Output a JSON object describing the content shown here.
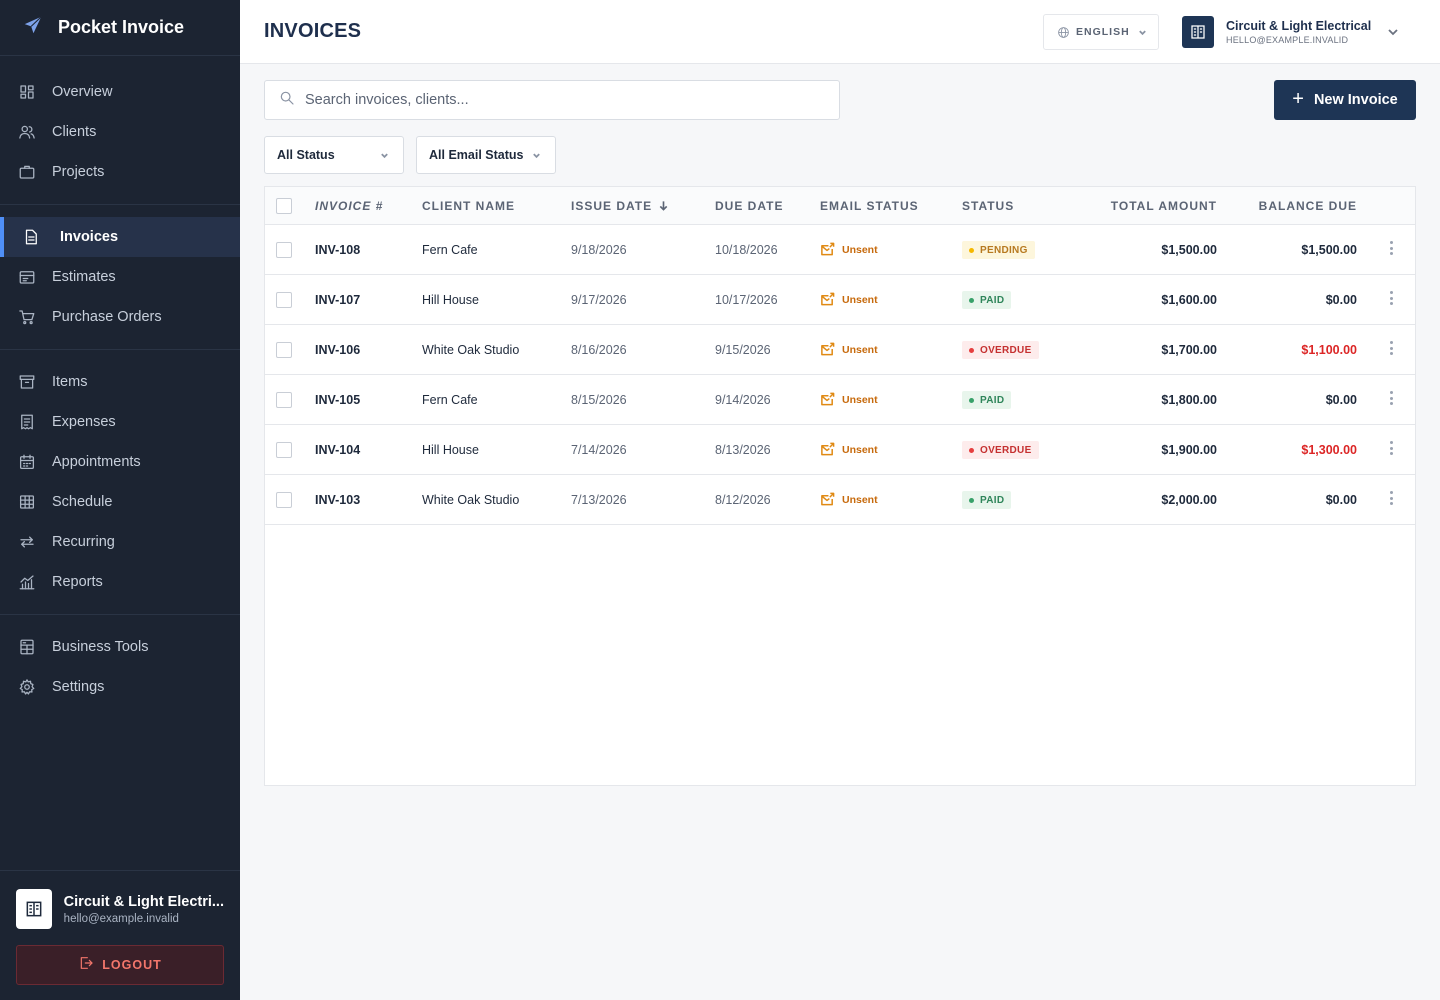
{
  "app": {
    "name": "Pocket Invoice"
  },
  "sidebar": {
    "groups": [
      [
        {
          "label": "Overview",
          "icon": "grid-icon"
        },
        {
          "label": "Clients",
          "icon": "users-icon"
        },
        {
          "label": "Projects",
          "icon": "briefcase-icon"
        }
      ],
      [
        {
          "label": "Invoices",
          "icon": "document-icon",
          "active": true
        },
        {
          "label": "Estimates",
          "icon": "estimate-icon"
        },
        {
          "label": "Purchase Orders",
          "icon": "cart-icon"
        }
      ],
      [
        {
          "label": "Items",
          "icon": "archive-icon"
        },
        {
          "label": "Expenses",
          "icon": "receipt-icon"
        },
        {
          "label": "Appointments",
          "icon": "calendar-icon"
        },
        {
          "label": "Schedule",
          "icon": "table-icon"
        },
        {
          "label": "Recurring",
          "icon": "repeat-icon"
        },
        {
          "label": "Reports",
          "icon": "chart-icon"
        }
      ],
      [
        {
          "label": "Business Tools",
          "icon": "calculator-icon"
        },
        {
          "label": "Settings",
          "icon": "gear-icon"
        }
      ]
    ],
    "footer": {
      "name": "Circuit & Light Electri...",
      "email": "hello@example.invalid",
      "logout_label": "LOGOUT"
    }
  },
  "header": {
    "title": "INVOICES",
    "language": "ENGLISH",
    "account_name": "Circuit & Light Electrical",
    "account_email": "HELLO@EXAMPLE.INVALID"
  },
  "toolbar": {
    "search_placeholder": "Search invoices, clients...",
    "new_invoice_label": "New Invoice",
    "status_filter": "All Status",
    "email_status_filter": "All Email Status"
  },
  "table": {
    "columns": {
      "invoice": "INVOICE #",
      "client": "CLIENT NAME",
      "issue_date": "ISSUE DATE",
      "due_date": "DUE DATE",
      "email_status": "EMAIL STATUS",
      "status": "STATUS",
      "total": "TOTAL AMOUNT",
      "balance": "BALANCE DUE"
    },
    "rows": [
      {
        "invoice": "INV-108",
        "client": "Fern Cafe",
        "issue_date": "9/18/2026",
        "due_date": "10/18/2026",
        "email_status": "Unsent",
        "status": "PENDING",
        "total": "$1,500.00",
        "balance": "$1,500.00"
      },
      {
        "invoice": "INV-107",
        "client": "Hill House",
        "issue_date": "9/17/2026",
        "due_date": "10/17/2026",
        "email_status": "Unsent",
        "status": "PAID",
        "total": "$1,600.00",
        "balance": "$0.00"
      },
      {
        "invoice": "INV-106",
        "client": "White Oak Studio",
        "issue_date": "8/16/2026",
        "due_date": "9/15/2026",
        "email_status": "Unsent",
        "status": "OVERDUE",
        "total": "$1,700.00",
        "balance": "$1,100.00"
      },
      {
        "invoice": "INV-105",
        "client": "Fern Cafe",
        "issue_date": "8/15/2026",
        "due_date": "9/14/2026",
        "email_status": "Unsent",
        "status": "PAID",
        "total": "$1,800.00",
        "balance": "$0.00"
      },
      {
        "invoice": "INV-104",
        "client": "Hill House",
        "issue_date": "7/14/2026",
        "due_date": "8/13/2026",
        "email_status": "Unsent",
        "status": "OVERDUE",
        "total": "$1,900.00",
        "balance": "$1,300.00"
      },
      {
        "invoice": "INV-103",
        "client": "White Oak Studio",
        "issue_date": "7/13/2026",
        "due_date": "8/12/2026",
        "email_status": "Unsent",
        "status": "PAID",
        "total": "$2,000.00",
        "balance": "$0.00"
      }
    ]
  },
  "colors": {
    "sidebar_bg": "#1c2432",
    "accent": "#1e3555",
    "active_indicator": "#4f8ff7",
    "pending_bg": "#fdf6dc",
    "pending_text": "#b7791f",
    "pending_dot": "#f5b800",
    "paid_bg": "#e8f5ec",
    "paid_text": "#2f855a",
    "paid_dot": "#38a169",
    "overdue_bg": "#fdecec",
    "overdue_text": "#c53030",
    "overdue_dot": "#e53e3e",
    "balance_alert": "#dc2626"
  }
}
